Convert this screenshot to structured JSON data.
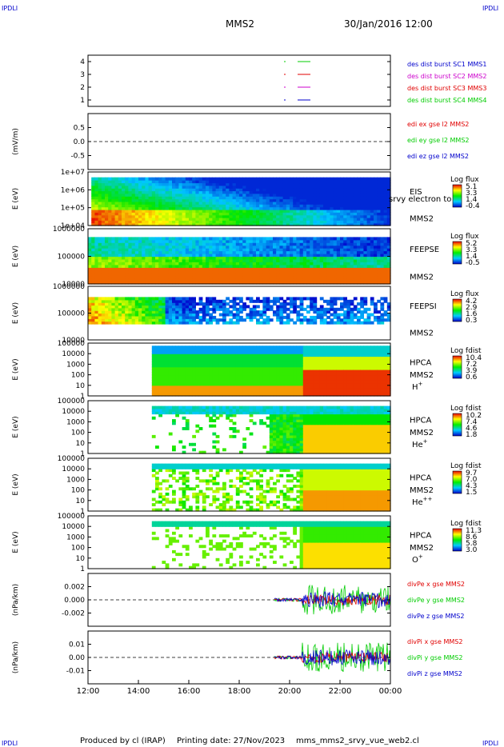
{
  "header": {
    "logo_left": "IPDLI",
    "logo_right": "IPDLI",
    "logo_bottom_left": "IPDLI",
    "logo_bottom_right": "IPDLI",
    "spacecraft": "MMS2",
    "datetime": "30/Jan/2016 12:00"
  },
  "footer": {
    "produced": "Produced by cl (IRAP)",
    "printing": "Printing date: 27/Nov/2023",
    "script": "mms_mms2_srvy_vue_web2.cl"
  },
  "colors": {
    "red": "#e00000",
    "green": "#00cc00",
    "blue": "#0000cc",
    "magenta": "#cc00cc"
  },
  "chart_data": {
    "type": "heatmap",
    "x_ticks": [
      "12:00",
      "14:00",
      "16:00",
      "18:00",
      "20:00",
      "22:00",
      "00:00"
    ],
    "panels": [
      {
        "kind": "line",
        "ylabel": "",
        "yticks": [
          "4",
          "3",
          "2",
          "1"
        ],
        "legend": [
          {
            "text": "des dist burst SC1 MMS1",
            "color": "#0000cc"
          },
          {
            "text": "des dist burst SC2 MMS2",
            "color": "#cc00cc"
          },
          {
            "text": "des dist burst SC3 MMS3",
            "color": "#e00000"
          },
          {
            "text": "des dist burst SC4 MMS4",
            "color": "#00cc00"
          }
        ]
      },
      {
        "kind": "line",
        "ylabel": "(mV/m)",
        "yticks": [
          "0.5",
          "0.0",
          "-0.5"
        ],
        "legend": [
          {
            "text": "edi ex gse l2 MMS2",
            "color": "#e00000"
          },
          {
            "text": "edi ey gse l2 MMS2",
            "color": "#00cc00"
          },
          {
            "text": "edi ez gse l2 MMS2",
            "color": "#0000cc"
          }
        ]
      },
      {
        "kind": "spec",
        "ylabel": "E (eV)",
        "yticks": [
          "1e+07",
          "1e+06",
          "1e+05",
          "1e+04"
        ],
        "instrument": "EIS",
        "overlay": "srvy electron to",
        "sc": "MMS2",
        "species": "",
        "cbar_title": "Log flux",
        "cbar_ticks": [
          "5.1",
          "3.3",
          "1.4",
          "-0.4"
        ]
      },
      {
        "kind": "spec",
        "ylabel": "E (eV)",
        "yticks": [
          "1000000",
          "100000",
          "10000"
        ],
        "instrument": "FEEPSE",
        "overlay": "",
        "sc": "MMS2",
        "species": "",
        "cbar_title": "Log flux",
        "cbar_ticks": [
          "5.2",
          "3.3",
          "1.4",
          "-0.5"
        ]
      },
      {
        "kind": "spec",
        "ylabel": "E (eV)",
        "yticks": [
          "1000000",
          "100000",
          "10000"
        ],
        "instrument": "FEEPSI",
        "overlay": "",
        "sc": "MMS2",
        "species": "",
        "cbar_title": "Log flux",
        "cbar_ticks": [
          "4.2",
          "2.9",
          "1.6",
          "0.3"
        ]
      },
      {
        "kind": "spec",
        "ylabel": "E (eV)",
        "yticks": [
          "100000",
          "10000",
          "1000",
          "100",
          "10",
          "1"
        ],
        "instrument": "HPCA",
        "overlay": "",
        "sc": "MMS2",
        "species": "H",
        "species_sup": "+",
        "cbar_title": "Log fdist",
        "cbar_ticks": [
          "10.4",
          "7.2",
          "3.9",
          "0.6"
        ]
      },
      {
        "kind": "spec",
        "ylabel": "E (eV)",
        "yticks": [
          "100000",
          "10000",
          "1000",
          "100",
          "10",
          "1"
        ],
        "instrument": "HPCA",
        "overlay": "",
        "sc": "MMS2",
        "species": "He",
        "species_sup": "+",
        "cbar_title": "Log fdist",
        "cbar_ticks": [
          "10.2",
          "7.4",
          "4.6",
          "1.8"
        ]
      },
      {
        "kind": "spec",
        "ylabel": "E (eV)",
        "yticks": [
          "100000",
          "10000",
          "1000",
          "100",
          "10",
          "1"
        ],
        "instrument": "HPCA",
        "overlay": "",
        "sc": "MMS2",
        "species": "He",
        "species_sup": "++",
        "cbar_title": "Log fdist",
        "cbar_ticks": [
          "9.7",
          "7.0",
          "4.3",
          "1.5"
        ]
      },
      {
        "kind": "spec",
        "ylabel": "E (eV)",
        "yticks": [
          "100000",
          "10000",
          "1000",
          "100",
          "10",
          "1"
        ],
        "instrument": "HPCA",
        "overlay": "",
        "sc": "MMS2",
        "species": "O",
        "species_sup": "+",
        "cbar_title": "Log fdist",
        "cbar_ticks": [
          "11.3",
          "8.6",
          "5.8",
          "3.0"
        ]
      },
      {
        "kind": "line",
        "ylabel": "(nPa/km)",
        "yticks": [
          "0.002",
          "0.000",
          "-0.002"
        ],
        "legend": [
          {
            "text": "divPe x gse MMS2",
            "color": "#e00000"
          },
          {
            "text": "divPe y gse MMS2",
            "color": "#00cc00"
          },
          {
            "text": "divPe z gse MMS2",
            "color": "#0000cc"
          }
        ]
      },
      {
        "kind": "line",
        "ylabel": "(nPa/km)",
        "yticks": [
          "0.01",
          "0.00",
          "-0.01"
        ],
        "legend": [
          {
            "text": "divPi x gse MMS2",
            "color": "#e00000"
          },
          {
            "text": "divPi y gse MMS2",
            "color": "#00cc00"
          },
          {
            "text": "divPi z gse MMS2",
            "color": "#0000cc"
          }
        ]
      }
    ]
  }
}
